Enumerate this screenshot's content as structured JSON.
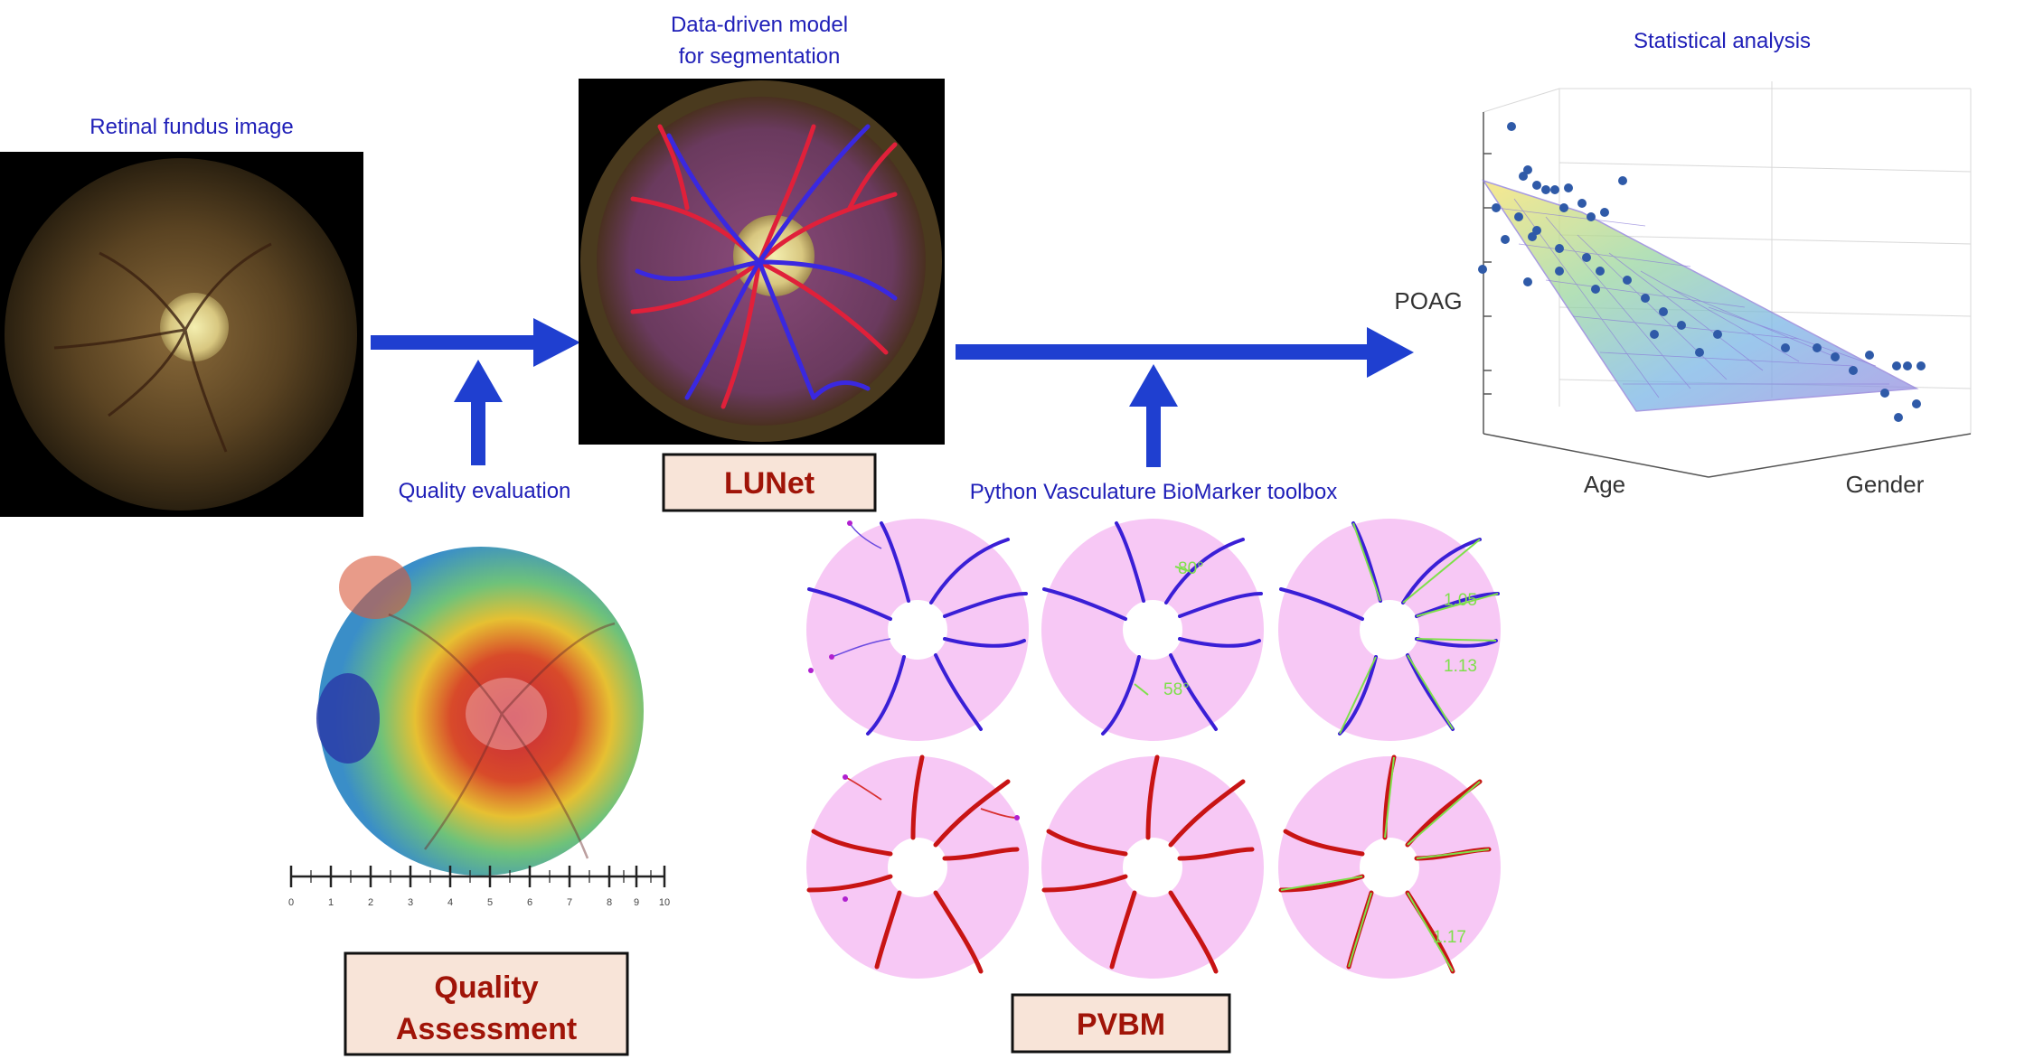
{
  "captions": {
    "fundus": "Retinal fundus image",
    "model_line1": "Data-driven model",
    "model_line2": "for segmentation",
    "stats": "Statistical analysis",
    "quality": "Quality evaluation",
    "pvbm_toolbox": "Python Vasculature BioMarker toolbox"
  },
  "boxes": {
    "lunet": "LUNet",
    "quality_line1": "Quality",
    "quality_line2": "Assessment",
    "pvbm": "PVBM"
  },
  "plot": {
    "ylabel": "POAG",
    "xlabel": "Age",
    "zlabel": "Gender"
  },
  "scale": {
    "ticks": [
      "0",
      "1",
      "2",
      "3",
      "4",
      "5",
      "6",
      "7",
      "8",
      "9",
      "10"
    ]
  },
  "pvbm_annotations": {
    "angle_top": "80°",
    "angle_bottom": "58°",
    "ratio_a": "1.05",
    "ratio_b": "1.13",
    "ratio_c": "1.17"
  },
  "colors": {
    "arrow": "#1f3fd0",
    "caption": "#1f1fb8",
    "box_fill": "#f8e4d8",
    "box_text": "#a01408",
    "artery": "#d21414",
    "vein": "#3a1fd6",
    "disc_bg": "#f7c8f5",
    "annotation": "#7ee04a"
  },
  "icons": [
    "arrow-right-icon",
    "arrow-up-icon"
  ]
}
